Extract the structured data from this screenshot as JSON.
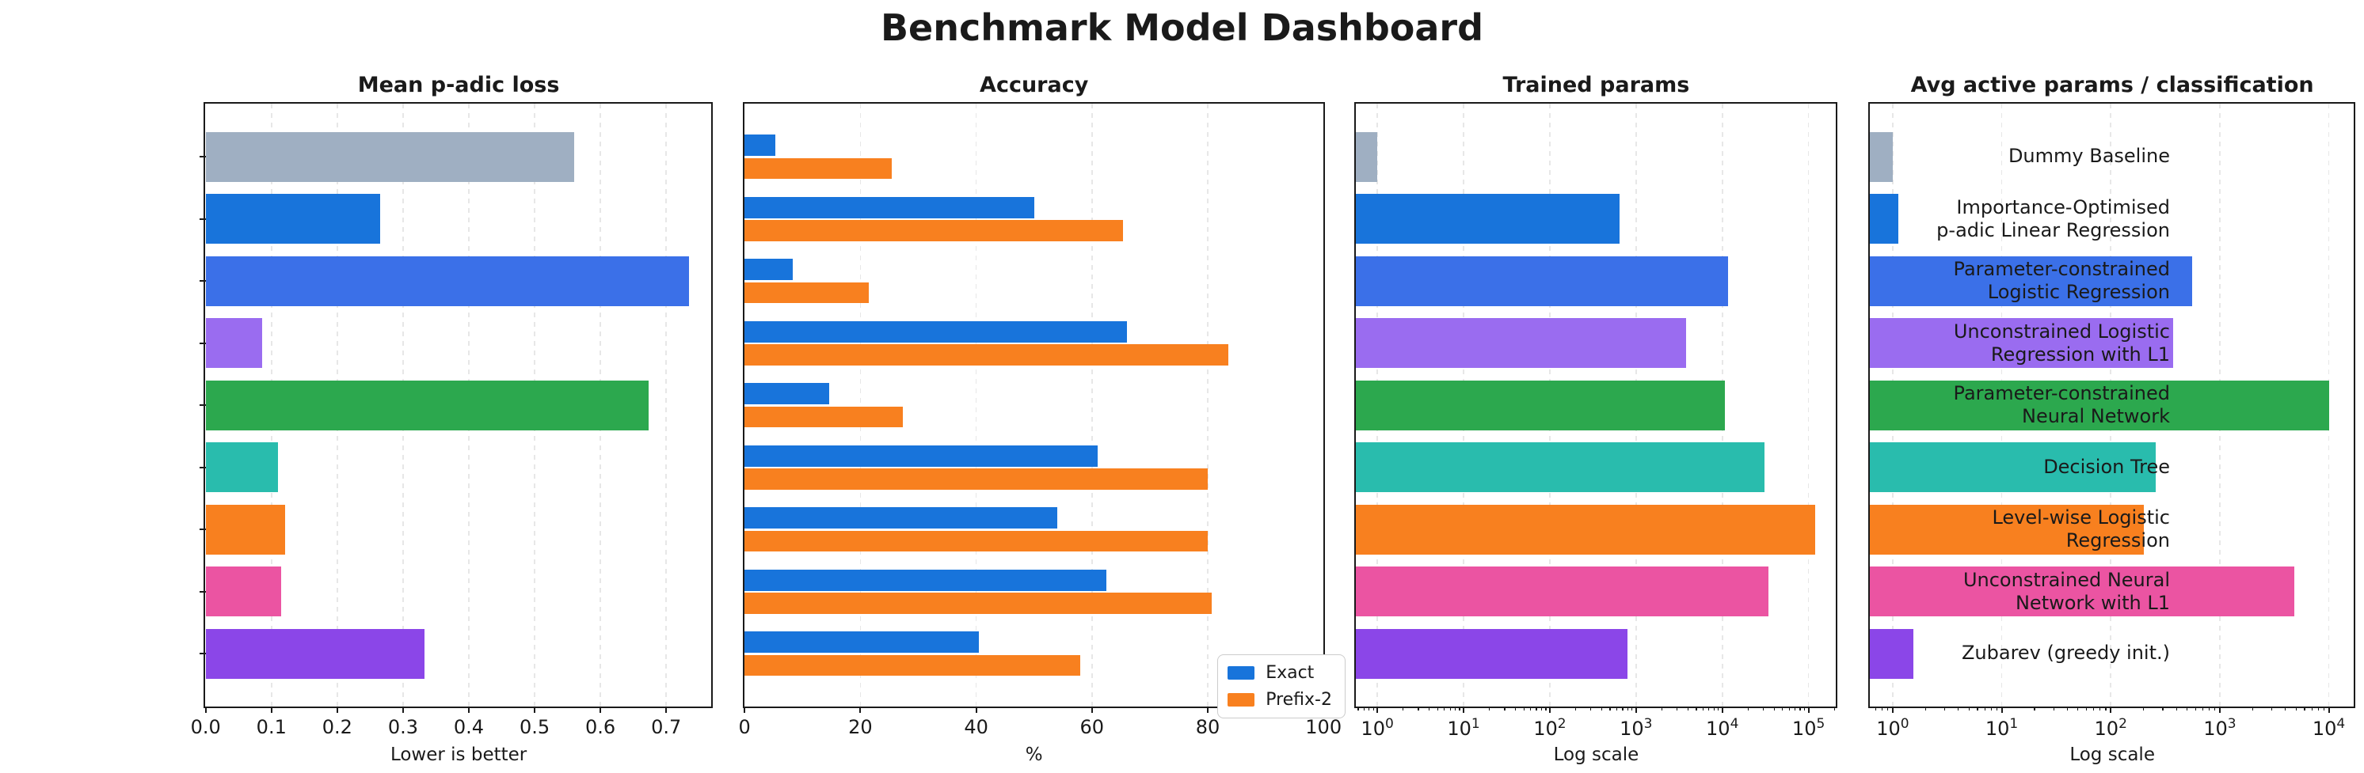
{
  "title": "Benchmark Model Dashboard",
  "categories": [
    {
      "label_lines": [
        "Dummy Baseline"
      ],
      "color": "#9fafc2"
    },
    {
      "label_lines": [
        "Importance-Optimised",
        "p-adic Linear Regression"
      ],
      "color": "#1874db"
    },
    {
      "label_lines": [
        "Parameter-constrained",
        "Logistic Regression"
      ],
      "color": "#3b70e8"
    },
    {
      "label_lines": [
        "Unconstrained Logistic",
        "Regression with L1"
      ],
      "color": "#9a6cf0"
    },
    {
      "label_lines": [
        "Parameter-constrained",
        "Neural Network"
      ],
      "color": "#2ca84e"
    },
    {
      "label_lines": [
        "Decision Tree"
      ],
      "color": "#29bcad"
    },
    {
      "label_lines": [
        "Level-wise Logistic",
        "Regression"
      ],
      "color": "#f8801f"
    },
    {
      "label_lines": [
        "Unconstrained Neural",
        "Network with L1"
      ],
      "color": "#eb54a2"
    },
    {
      "label_lines": [
        "Zubarev (greedy init.)"
      ],
      "color": "#8b46e8"
    }
  ],
  "chart_data": [
    {
      "type": "bar",
      "orientation": "horizontal",
      "title": "Mean p-adic loss",
      "xlabel": "Lower is better",
      "axis": "linear",
      "xlim": [
        0,
        0.769
      ],
      "xticks": [
        0.0,
        0.1,
        0.2,
        0.3,
        0.4,
        0.5,
        0.6,
        0.7
      ],
      "xtick_labels": [
        "0.0",
        "0.1",
        "0.2",
        "0.3",
        "0.4",
        "0.5",
        "0.6",
        "0.7"
      ],
      "grid": true,
      "values": [
        0.56,
        0.265,
        0.735,
        0.086,
        0.673,
        0.11,
        0.121,
        0.115,
        0.333
      ]
    },
    {
      "type": "bar",
      "orientation": "horizontal",
      "title": "Accuracy",
      "xlabel": "%",
      "axis": "linear",
      "xlim": [
        0,
        100
      ],
      "xticks": [
        0,
        20,
        40,
        60,
        80,
        100
      ],
      "xtick_labels": [
        "0",
        "20",
        "40",
        "60",
        "80",
        "100"
      ],
      "grid": true,
      "legend_position": "lower right",
      "series": [
        {
          "name": "Exact",
          "color": "#1874db",
          "values": [
            5.3,
            50,
            8.3,
            66,
            14.6,
            61,
            54,
            62.5,
            40.5
          ]
        },
        {
          "name": "Prefix-2",
          "color": "#f8801f",
          "values": [
            25.4,
            65.3,
            21.4,
            83.5,
            27.4,
            80,
            80,
            80.7,
            58
          ]
        }
      ]
    },
    {
      "type": "bar",
      "orientation": "horizontal",
      "title": "Trained params",
      "xlabel": "Log scale",
      "axis": "log",
      "xlim": [
        0.566,
        210000
      ],
      "xticks_exp": [
        0,
        1,
        2,
        3,
        4,
        5
      ],
      "grid": true,
      "values": [
        1.0,
        650,
        11700,
        3800,
        10700,
        30700,
        120000,
        34500,
        800
      ]
    },
    {
      "type": "bar",
      "orientation": "horizontal",
      "title": "Avg active params / classification",
      "xlabel": "Log scale",
      "axis": "log",
      "xlim": [
        0.62,
        17200
      ],
      "xticks_exp": [
        0,
        1,
        2,
        3,
        4
      ],
      "grid": true,
      "values": [
        1.0,
        1.12,
        560,
        375,
        10000,
        260,
        200,
        4800,
        1.55
      ]
    }
  ]
}
